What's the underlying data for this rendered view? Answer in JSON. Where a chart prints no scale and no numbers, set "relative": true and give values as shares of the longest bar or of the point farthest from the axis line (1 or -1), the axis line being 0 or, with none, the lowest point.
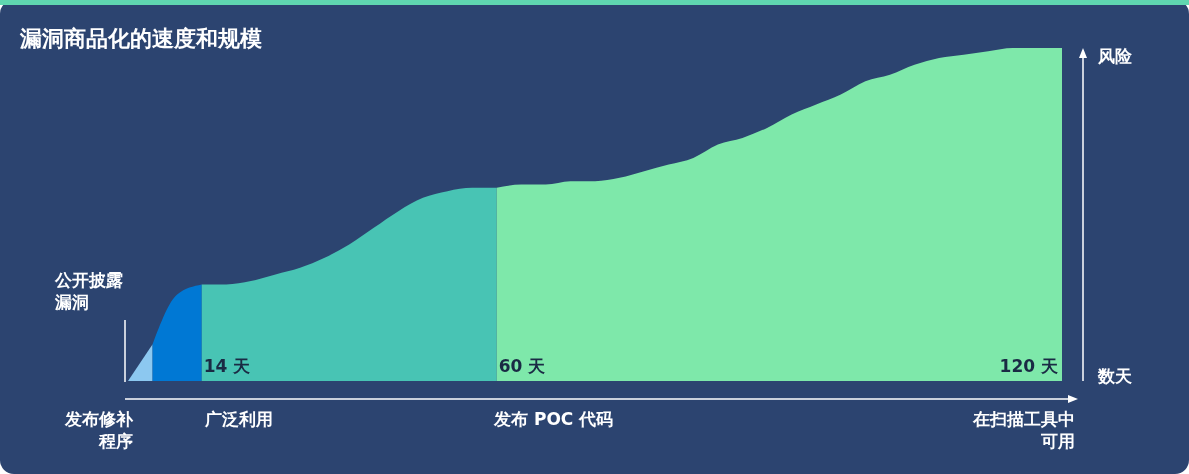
{
  "chart_data": {
    "type": "area",
    "title": "漏洞商品化的速度和规模",
    "relative": true,
    "categories": [
      null,
      null,
      null,
      null,
      null,
      null,
      null,
      null,
      null,
      null,
      null,
      null,
      null,
      null,
      null,
      null,
      null,
      null,
      null,
      null,
      null,
      null,
      null,
      null,
      null,
      null,
      null,
      null,
      null,
      null,
      null,
      null,
      null,
      null,
      null,
      null,
      null,
      null,
      null
    ],
    "series": [
      {
        "color": "#8cc8f0",
        "values": [
          0,
          0.11,
          null,
          null,
          null,
          null,
          null,
          null,
          null,
          null,
          null,
          null,
          null,
          null,
          null,
          null,
          null,
          null,
          null,
          null,
          null,
          null,
          null,
          null,
          null,
          null,
          null,
          null,
          null,
          null,
          null,
          null,
          null,
          null,
          null,
          null,
          null,
          null,
          null
        ]
      },
      {
        "color": "#0078d4",
        "values": [
          null,
          0.11,
          0.26,
          0.29,
          null,
          null,
          null,
          null,
          null,
          null,
          null,
          null,
          null,
          null,
          null,
          null,
          null,
          null,
          null,
          null,
          null,
          null,
          null,
          null,
          null,
          null,
          null,
          null,
          null,
          null,
          null,
          null,
          null,
          null,
          null,
          null,
          null,
          null,
          null
        ]
      },
      {
        "color": "#48c4b4",
        "values": [
          null,
          null,
          null,
          0.29,
          0.29,
          0.3,
          0.32,
          0.34,
          0.37,
          0.41,
          0.46,
          0.51,
          0.55,
          0.57,
          0.58,
          0.58,
          null,
          null,
          null,
          null,
          null,
          null,
          null,
          null,
          null,
          null,
          null,
          null,
          null,
          null,
          null,
          null,
          null,
          null,
          null,
          null,
          null,
          null,
          null
        ]
      },
      {
        "color": "#7ee8aa",
        "values": [
          null,
          null,
          null,
          null,
          null,
          null,
          null,
          null,
          null,
          null,
          null,
          null,
          null,
          null,
          null,
          0.58,
          0.59,
          0.59,
          0.6,
          0.6,
          0.61,
          0.63,
          0.65,
          0.67,
          0.71,
          0.73,
          0.76,
          0.8,
          0.83,
          0.86,
          0.9,
          0.92,
          0.95,
          0.97,
          0.98,
          0.99,
          1,
          1,
          1
        ]
      }
    ],
    "annotations": [
      "风险",
      "数天",
      "14 天",
      "60 天",
      "120 天",
      "公开披露漏洞",
      "发布修补程序",
      "广泛利用",
      "发布 POC 代码",
      "在扫描工具中可用"
    ]
  }
}
